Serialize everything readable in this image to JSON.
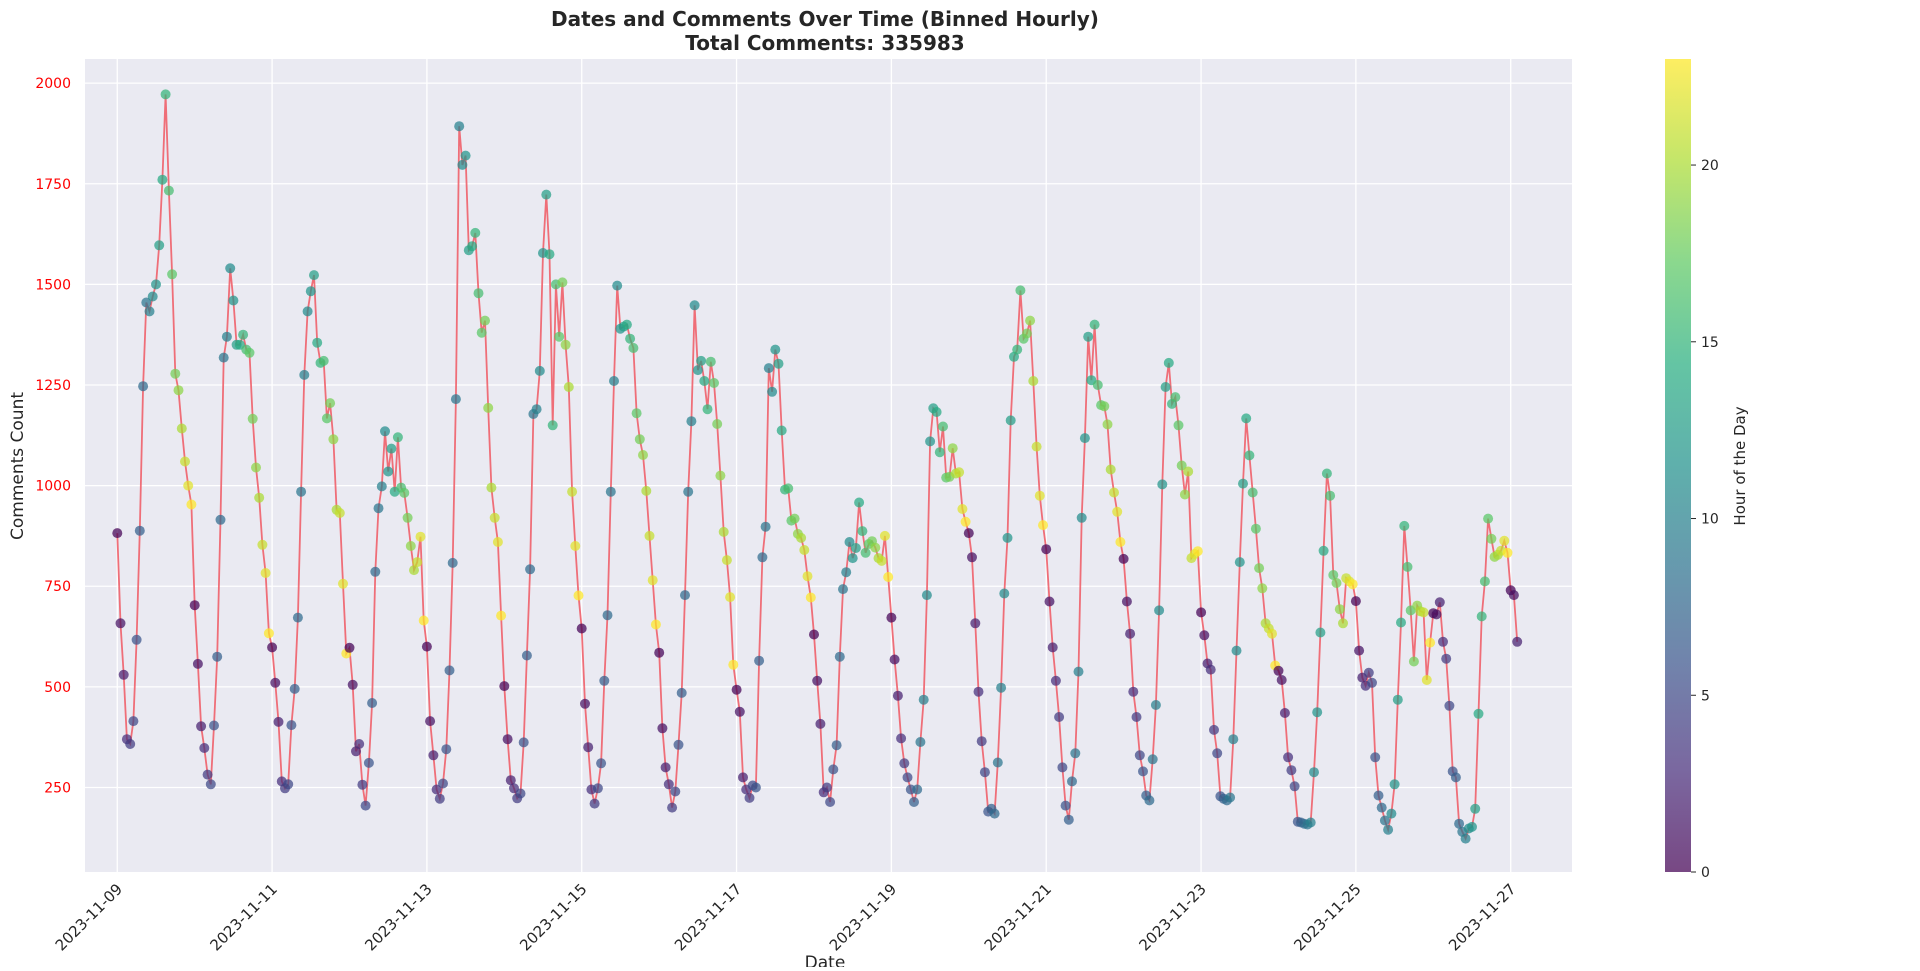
{
  "chart_data": {
    "type": "line",
    "title": "Dates and Comments Over Time (Binned Hourly)",
    "subtitle": "Total Comments: 335983",
    "xlabel": "Date",
    "ylabel": "Comments Count",
    "colorbar_label": "Hour of the Day",
    "colormap": "viridis",
    "colorbar_range": [
      0,
      23
    ],
    "colorbar_ticks": [
      0,
      5,
      10,
      15,
      20
    ],
    "xlim": [
      "2023-11-08 14:00",
      "2023-11-27 19:00"
    ],
    "x_ticks": [
      "2023-11-09",
      "2023-11-11",
      "2023-11-13",
      "2023-11-15",
      "2023-11-17",
      "2023-11-19",
      "2023-11-21",
      "2023-11-23",
      "2023-11-25",
      "2023-11-27"
    ],
    "ylim": [
      40,
      2060
    ],
    "y_ticks": [
      250,
      500,
      750,
      1000,
      1250,
      1500,
      1750,
      2000
    ],
    "grid": true,
    "line_color": "#f0606a",
    "y_tick_color": "#ff0000",
    "background_color": "#eaeaf2",
    "start_datetime": "2023-11-09 00:00",
    "binning": "hourly",
    "series": [
      {
        "values": [
          882,
          658,
          530,
          370,
          358,
          415,
          617,
          888,
          1247,
          1455,
          1433,
          1470,
          1500,
          1597,
          1760,
          1972,
          1733,
          1525,
          1278,
          1237,
          1142,
          1060,
          1000,
          953,
          703,
          557,
          402,
          348,
          282,
          258,
          404,
          575,
          915,
          1318,
          1370,
          1540,
          1460,
          1350,
          1350,
          1375,
          1338,
          1330,
          1166,
          1045,
          970,
          853,
          783,
          633,
          598,
          510,
          413,
          265,
          248,
          258,
          405,
          495,
          672,
          985,
          1275,
          1433,
          1483,
          1523,
          1355,
          1305,
          1310,
          1167,
          1205,
          1115,
          940,
          932,
          756,
          583,
          597,
          505,
          340,
          358,
          257,
          205,
          311,
          460,
          786,
          944,
          998,
          1135,
          1035,
          1092,
          985,
          1120,
          995,
          982,
          920,
          850,
          790,
          810,
          873,
          665,
          600,
          415,
          330,
          245,
          222,
          260,
          345,
          541,
          808,
          1215,
          1893,
          1797,
          1820,
          1585,
          1595,
          1628,
          1478,
          1380,
          1410,
          1193,
          995,
          920,
          860,
          677,
          502,
          370,
          268,
          248,
          223,
          235,
          362,
          578,
          792,
          1178,
          1190,
          1285,
          1578,
          1723,
          1575,
          1150,
          1500,
          1370,
          1505,
          1350,
          1245,
          985,
          850,
          727,
          645,
          458,
          350,
          245,
          210,
          248,
          310,
          515,
          678,
          985,
          1260,
          1497,
          1390,
          1395,
          1400,
          1365,
          1342,
          1180,
          1115,
          1076,
          987,
          875,
          765,
          655,
          585,
          397,
          300,
          258,
          200,
          240,
          356,
          485,
          728,
          985,
          1160,
          1448,
          1287,
          1310,
          1260,
          1190,
          1308,
          1255,
          1153,
          1025,
          885,
          815,
          723,
          555,
          493,
          438,
          275,
          245,
          224,
          255,
          250,
          565,
          822,
          898,
          1292,
          1233,
          1338,
          1303,
          1137,
          990,
          993,
          913,
          918,
          880,
          870,
          840,
          775,
          722,
          630,
          515,
          408,
          238,
          250,
          214,
          295,
          355,
          575,
          743,
          785,
          860,
          820,
          845,
          958,
          887,
          833,
          855,
          862,
          846,
          820,
          813,
          875,
          773,
          672,
          568,
          478,
          372,
          310,
          275,
          245,
          214,
          245,
          363,
          468,
          728,
          1110,
          1192,
          1183,
          1083,
          1147,
          1020,
          1022,
          1093,
          1030,
          1033,
          942,
          910,
          882,
          822,
          658,
          488,
          365,
          288,
          190,
          197,
          185,
          312,
          498,
          732,
          870,
          1162,
          1320,
          1338,
          1485,
          1365,
          1378,
          1410,
          1260,
          1097,
          975,
          902,
          842,
          712,
          598,
          515,
          425,
          300,
          205,
          170,
          265,
          335,
          538,
          920,
          1118,
          1370,
          1262,
          1400,
          1250,
          1200,
          1197,
          1152,
          1040,
          983,
          935,
          860,
          818,
          712,
          632,
          488,
          425,
          330,
          290,
          230,
          218,
          320,
          455,
          690,
          1003,
          1245,
          1305,
          1203,
          1220,
          1150,
          1050,
          978,
          1035,
          820,
          830,
          837,
          685,
          628,
          558,
          543,
          393,
          335,
          228,
          222,
          218,
          225,
          370,
          590,
          810,
          1005,
          1167,
          1075,
          983,
          893,
          795,
          745,
          658,
          645,
          632,
          553,
          540,
          517,
          435,
          325,
          293,
          253,
          165,
          163,
          160,
          158,
          163,
          288,
          437,
          635,
          838,
          1030,
          975,
          778,
          758,
          693,
          658,
          770,
          762,
          755,
          713,
          590,
          523,
          503,
          535,
          510,
          325,
          230,
          200,
          168,
          145,
          185,
          258,
          468,
          660,
          900,
          798,
          690,
          563,
          702,
          688,
          685,
          517,
          610,
          683,
          680,
          710,
          612,
          570,
          453,
          290,
          275,
          160,
          140,
          123,
          148,
          152,
          197,
          433,
          675,
          762,
          918,
          868,
          823,
          828,
          838,
          863,
          833,
          740,
          728,
          612
        ]
      }
    ]
  }
}
